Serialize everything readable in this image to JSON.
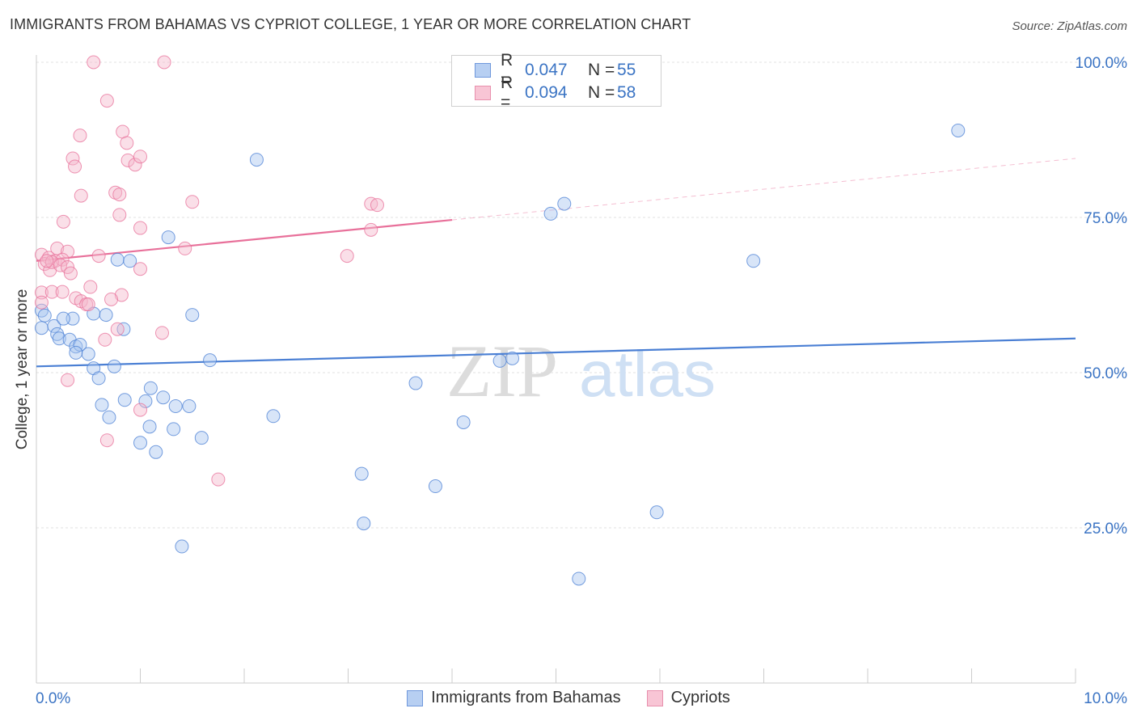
{
  "title": "IMMIGRANTS FROM BAHAMAS VS CYPRIOT COLLEGE, 1 YEAR OR MORE CORRELATION CHART",
  "source": "Source: ZipAtlas.com",
  "watermark": {
    "zip": "ZIP",
    "atlas": "atlas"
  },
  "legend": {
    "rows": [
      {
        "r_label": "R =",
        "r_value": "0.047",
        "n_label": "N =",
        "n_value": "55"
      },
      {
        "r_label": "R =",
        "r_value": "0.094",
        "n_label": "N =",
        "n_value": "58"
      }
    ]
  },
  "bottom_legend": [
    "Immigrants from Bahamas",
    "Cypriots"
  ],
  "colors": {
    "blue": "#4a7fd4",
    "blue_fill": "#a9c6ef",
    "pink": "#e8709a",
    "pink_fill": "#f5b8cb",
    "axis_text": "#3b74c4"
  },
  "chart_data": {
    "type": "scatter",
    "xlabel": "",
    "ylabel": "College, 1 year or more",
    "xlim": [
      0,
      10
    ],
    "ylim": [
      0,
      100
    ],
    "x_tick_labels": [
      "0.0%",
      "10.0%"
    ],
    "y_ticks": [
      25,
      50,
      75,
      100
    ],
    "y_tick_labels": [
      "25.0%",
      "50.0%",
      "75.0%",
      "100.0%"
    ],
    "grid": true,
    "series": [
      {
        "name": "Immigrants from Bahamas",
        "color": "#4a7fd4",
        "trend": {
          "x0": 0,
          "y0": 51.0,
          "x1": 10,
          "y1": 55.5,
          "dashed_from": null
        },
        "points": [
          [
            0.05,
            60.0
          ],
          [
            0.08,
            59.2
          ],
          [
            0.05,
            57.2
          ],
          [
            0.17,
            57.5
          ],
          [
            0.2,
            56.2
          ],
          [
            0.35,
            58.7
          ],
          [
            0.26,
            58.7
          ],
          [
            0.22,
            55.5
          ],
          [
            0.32,
            55.3
          ],
          [
            0.38,
            54.2
          ],
          [
            0.42,
            54.5
          ],
          [
            0.38,
            53.2
          ],
          [
            0.5,
            53.0
          ],
          [
            0.55,
            50.7
          ],
          [
            0.75,
            51.0
          ],
          [
            0.6,
            49.1
          ],
          [
            0.55,
            59.5
          ],
          [
            0.67,
            59.3
          ],
          [
            0.84,
            57.0
          ],
          [
            0.78,
            68.2
          ],
          [
            0.9,
            68.0
          ],
          [
            1.27,
            71.8
          ],
          [
            1.5,
            59.3
          ],
          [
            1.67,
            52.0
          ],
          [
            0.85,
            45.6
          ],
          [
            1.1,
            47.5
          ],
          [
            1.05,
            45.4
          ],
          [
            1.22,
            46.0
          ],
          [
            1.34,
            44.6
          ],
          [
            1.47,
            44.6
          ],
          [
            0.63,
            44.8
          ],
          [
            0.7,
            42.8
          ],
          [
            1.09,
            41.3
          ],
          [
            1.0,
            38.7
          ],
          [
            1.32,
            40.9
          ],
          [
            1.59,
            39.5
          ],
          [
            1.15,
            37.2
          ],
          [
            2.28,
            43.0
          ],
          [
            2.12,
            84.3
          ],
          [
            1.4,
            22.0
          ],
          [
            3.15,
            25.7
          ],
          [
            3.13,
            33.7
          ],
          [
            3.65,
            48.3
          ],
          [
            3.84,
            31.7
          ],
          [
            4.11,
            42.0
          ],
          [
            4.46,
            51.9
          ],
          [
            4.58,
            52.3
          ],
          [
            4.95,
            75.6
          ],
          [
            5.08,
            77.2
          ],
          [
            5.22,
            16.8
          ],
          [
            5.97,
            27.5
          ],
          [
            6.9,
            68.0
          ],
          [
            8.87,
            89.0
          ]
        ]
      },
      {
        "name": "Cypriots",
        "color": "#e8709a",
        "trend": {
          "x0": 0,
          "y0": 68.0,
          "x1": 10,
          "y1": 84.5,
          "dashed_from": 4.0
        },
        "points": [
          [
            0.55,
            100.0
          ],
          [
            1.23,
            100.0
          ],
          [
            0.68,
            93.8
          ],
          [
            0.42,
            88.2
          ],
          [
            0.83,
            88.8
          ],
          [
            0.87,
            87.0
          ],
          [
            0.35,
            84.5
          ],
          [
            0.37,
            83.2
          ],
          [
            0.88,
            84.2
          ],
          [
            0.95,
            83.5
          ],
          [
            1.0,
            84.8
          ],
          [
            0.43,
            78.5
          ],
          [
            0.76,
            79.0
          ],
          [
            0.8,
            78.7
          ],
          [
            1.5,
            77.5
          ],
          [
            0.26,
            74.3
          ],
          [
            0.8,
            75.4
          ],
          [
            1.0,
            73.3
          ],
          [
            3.22,
            77.2
          ],
          [
            3.28,
            77.0
          ],
          [
            3.22,
            73.0
          ],
          [
            0.05,
            69.0
          ],
          [
            0.12,
            68.5
          ],
          [
            0.2,
            70.0
          ],
          [
            0.3,
            69.5
          ],
          [
            0.18,
            68.0
          ],
          [
            0.25,
            68.2
          ],
          [
            0.08,
            67.5
          ],
          [
            0.13,
            66.5
          ],
          [
            0.15,
            67.8
          ],
          [
            0.23,
            67.3
          ],
          [
            0.1,
            68.0
          ],
          [
            0.3,
            67.0
          ],
          [
            0.33,
            66.0
          ],
          [
            0.6,
            68.8
          ],
          [
            1.0,
            66.7
          ],
          [
            1.43,
            70.0
          ],
          [
            2.99,
            68.8
          ],
          [
            0.05,
            62.9
          ],
          [
            0.15,
            63.0
          ],
          [
            0.25,
            63.0
          ],
          [
            0.38,
            62.0
          ],
          [
            0.52,
            63.8
          ],
          [
            0.82,
            62.5
          ],
          [
            0.43,
            61.5
          ],
          [
            0.48,
            61.0
          ],
          [
            0.05,
            61.3
          ],
          [
            0.72,
            61.8
          ],
          [
            0.78,
            57.0
          ],
          [
            0.66,
            55.3
          ],
          [
            1.21,
            56.4
          ],
          [
            0.3,
            48.8
          ],
          [
            1.0,
            44.0
          ],
          [
            0.68,
            39.1
          ],
          [
            1.75,
            32.8
          ],
          [
            0.5,
            61.0
          ]
        ]
      }
    ]
  }
}
